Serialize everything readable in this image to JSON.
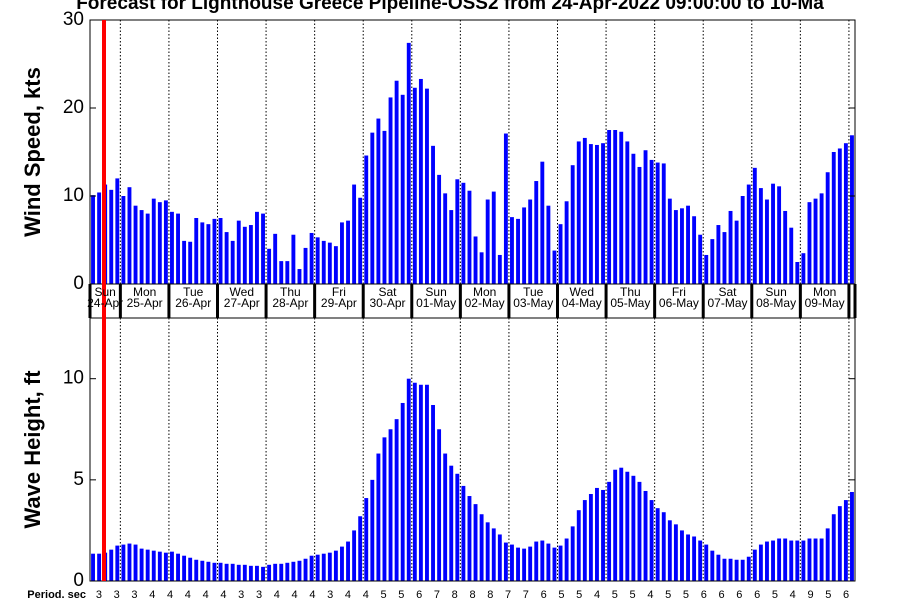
{
  "title": "Forecast for Lighthouse Greece Pipeline-OSS2 from 24-Apr-2022 09:00:00 to 10-Ma",
  "days": [
    {
      "weekday": "Sun",
      "date": "24-Apr"
    },
    {
      "weekday": "Mon",
      "date": "25-Apr"
    },
    {
      "weekday": "Tue",
      "date": "26-Apr"
    },
    {
      "weekday": "Wed",
      "date": "27-Apr"
    },
    {
      "weekday": "Thu",
      "date": "28-Apr"
    },
    {
      "weekday": "Fri",
      "date": "29-Apr"
    },
    {
      "weekday": "Sat",
      "date": "30-Apr"
    },
    {
      "weekday": "Sun",
      "date": "01-May"
    },
    {
      "weekday": "Mon",
      "date": "02-May"
    },
    {
      "weekday": "Tue",
      "date": "03-May"
    },
    {
      "weekday": "Wed",
      "date": "04-May"
    },
    {
      "weekday": "Thu",
      "date": "05-May"
    },
    {
      "weekday": "Fri",
      "date": "06-May"
    },
    {
      "weekday": "Sat",
      "date": "07-May"
    },
    {
      "weekday": "Sun",
      "date": "08-May"
    },
    {
      "weekday": "Mon",
      "date": "09-May"
    }
  ],
  "period": {
    "label": "Period. sec",
    "values": [
      3,
      3,
      3,
      4,
      4,
      4,
      4,
      4,
      3,
      3,
      4,
      4,
      4,
      3,
      4,
      4,
      5,
      5,
      6,
      7,
      8,
      8,
      8,
      7,
      7,
      6,
      5,
      5,
      4,
      5,
      5,
      4,
      5,
      5,
      6,
      6,
      6,
      6,
      5,
      4,
      9,
      5,
      6
    ]
  },
  "chart_data": [
    {
      "type": "bar",
      "ylabel": "Wind Speed, kts",
      "color": "#0000ff",
      "ylim": [
        0,
        30
      ],
      "yticks": [
        0,
        10,
        20,
        30
      ],
      "values": [
        10.1,
        10.4,
        11.3,
        10.7,
        12.0,
        10.0,
        11.0,
        8.9,
        8.4,
        8.0,
        9.7,
        9.3,
        9.5,
        8.2,
        8.0,
        4.9,
        4.8,
        7.5,
        7.0,
        6.8,
        7.4,
        7.5,
        5.9,
        4.9,
        7.2,
        6.5,
        6.7,
        8.2,
        8.0,
        4.0,
        5.7,
        2.6,
        2.6,
        5.6,
        1.7,
        4.1,
        5.8,
        5.3,
        4.9,
        4.7,
        4.3,
        7.0,
        7.2,
        11.3,
        9.8,
        14.6,
        17.2,
        18.8,
        17.4,
        21.2,
        23.1,
        21.5,
        27.4,
        22.3,
        23.3,
        22.2,
        15.7,
        12.4,
        10.3,
        8.4,
        11.9,
        11.5,
        10.6,
        5.4,
        3.6,
        9.6,
        10.5,
        3.3,
        17.1,
        7.6,
        7.4,
        8.7,
        9.6,
        11.7,
        13.9,
        8.9,
        3.8,
        6.8,
        9.4,
        13.5,
        16.2,
        16.6,
        15.9,
        15.8,
        16.0,
        17.5,
        17.5,
        17.3,
        16.2,
        14.8,
        13.3,
        15.2,
        14.1,
        13.8,
        13.7,
        9.7,
        8.4,
        8.6,
        8.9,
        7.7,
        5.6,
        3.3,
        5.1,
        6.7,
        5.9,
        8.3,
        7.2,
        10.0,
        11.3,
        13.2,
        10.9,
        9.6,
        11.4,
        11.1,
        8.3,
        6.4,
        2.5,
        3.5,
        9.3,
        9.7,
        10.3,
        12.7,
        15.0,
        15.4,
        16.0,
        16.9
      ]
    },
    {
      "type": "bar",
      "ylabel": "Wave Height, ft",
      "color": "#0000ff",
      "ylim": [
        0,
        13
      ],
      "yticks": [
        0,
        5,
        10
      ],
      "values": [
        1.35,
        1.35,
        1.4,
        1.55,
        1.75,
        1.8,
        1.85,
        1.8,
        1.6,
        1.55,
        1.5,
        1.45,
        1.4,
        1.45,
        1.35,
        1.25,
        1.15,
        1.05,
        1.0,
        0.95,
        0.9,
        0.9,
        0.85,
        0.85,
        0.8,
        0.8,
        0.75,
        0.75,
        0.7,
        0.8,
        0.85,
        0.85,
        0.9,
        0.95,
        1.0,
        1.1,
        1.25,
        1.3,
        1.35,
        1.4,
        1.5,
        1.7,
        1.95,
        2.5,
        3.2,
        4.1,
        5.0,
        6.3,
        7.1,
        7.5,
        8.0,
        8.8,
        10.0,
        9.8,
        9.7,
        9.7,
        8.7,
        7.5,
        6.3,
        5.7,
        5.3,
        4.7,
        4.2,
        3.8,
        3.3,
        2.9,
        2.6,
        2.3,
        1.9,
        1.8,
        1.65,
        1.6,
        1.7,
        1.95,
        2.0,
        1.85,
        1.65,
        1.75,
        2.1,
        2.7,
        3.5,
        4.0,
        4.3,
        4.6,
        4.5,
        4.9,
        5.5,
        5.6,
        5.4,
        5.2,
        4.9,
        4.45,
        4.0,
        3.6,
        3.4,
        3.0,
        2.8,
        2.5,
        2.3,
        2.2,
        2.0,
        1.8,
        1.5,
        1.3,
        1.1,
        1.1,
        1.05,
        1.05,
        1.2,
        1.55,
        1.8,
        1.95,
        2.0,
        2.1,
        2.1,
        2.0,
        2.0,
        2.0,
        2.1,
        2.1,
        2.1,
        2.6,
        3.3,
        3.7,
        4.0,
        4.4
      ]
    }
  ]
}
